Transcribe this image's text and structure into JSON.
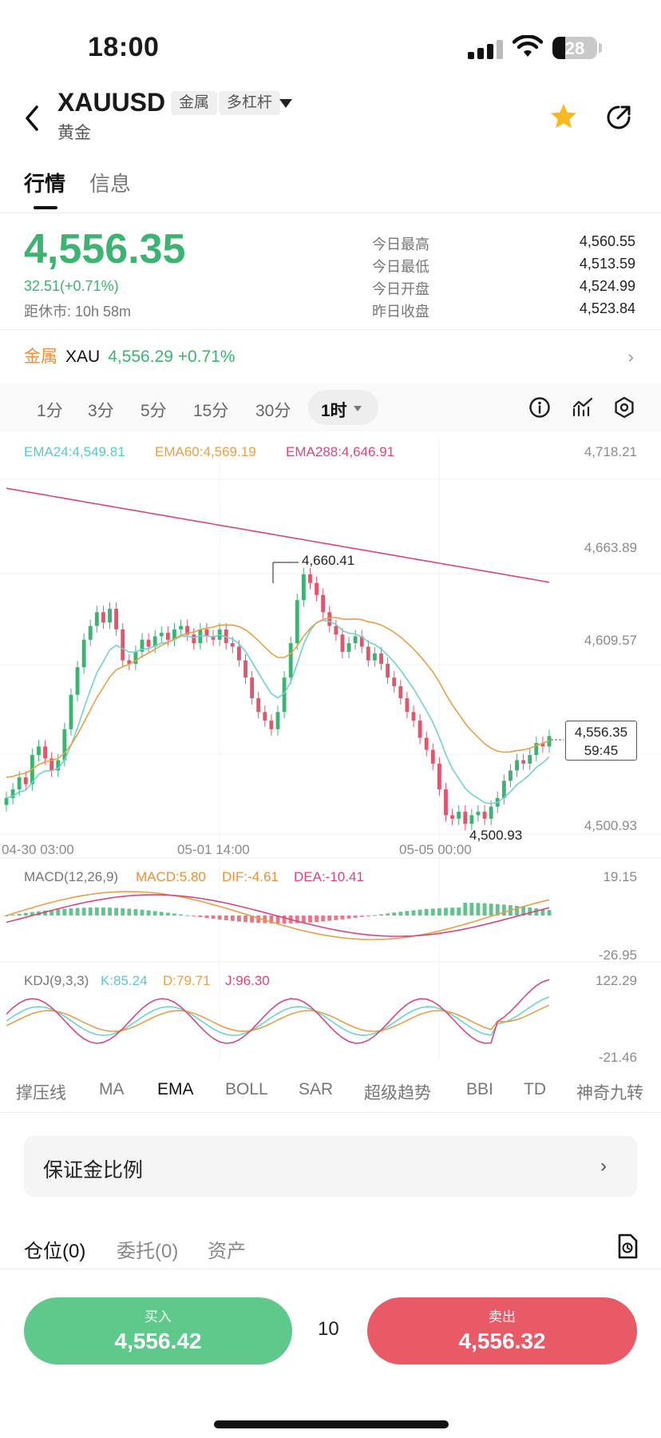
{
  "status_bar": {
    "time": "18:00",
    "battery": "28",
    "battery_level": 0.28
  },
  "header": {
    "symbol": "XAUUSD",
    "tags": [
      "金属",
      "多杠杆"
    ],
    "name": "黄金",
    "icons": [
      "back-icon",
      "caret-down-icon",
      "star-icon",
      "share-icon"
    ]
  },
  "tabs": {
    "active": "行情",
    "other": "信息"
  },
  "quote": {
    "price": "4,556.35",
    "change": "32.51(+0.71%)",
    "close_time": "距休市: 10h 58m",
    "stats": [
      {
        "label": "今日最高",
        "value": "4,560.55"
      },
      {
        "label": "今日最低",
        "value": "4,513.59"
      },
      {
        "label": "今日开盘",
        "value": "4,524.99"
      },
      {
        "label": "昨日收盘",
        "value": "4,523.84"
      }
    ]
  },
  "related": {
    "category": "金属",
    "symbol": "XAU",
    "values": "4,556.29 +0.71%"
  },
  "intervals": {
    "items": [
      "1分",
      "3分",
      "5分",
      "15分",
      "30分"
    ],
    "active": "1时"
  },
  "chart_data": {
    "type": "candlestick",
    "indicators": {
      "ema24": "EMA24:4,549.81",
      "ema60": "EMA60:4,569.19",
      "ema288": "EMA288:4,646.91"
    },
    "y_ticks": [
      "4,718.21",
      "4,663.89",
      "4,609.57",
      "4,500.93"
    ],
    "x_ticks": [
      "04-30 03:00",
      "05-01 14:00",
      "05-05 00:00"
    ],
    "high_marker": "4,660.41",
    "low_marker": "4,500.93",
    "last_price": "4,556.35",
    "countdown": "59:45",
    "ylim": [
      4500.93,
      4718.21
    ],
    "colors": {
      "up": "#3cb371",
      "down": "#e0566a",
      "ema24": "#6fd2cf",
      "ema60": "#e5a04a",
      "ema288": "#d6487e"
    },
    "macd": {
      "title": "MACD(12,26,9)",
      "macd": "MACD:5.80",
      "dif": "DIF:-4.61",
      "dea": "DEA:-10.41",
      "y_ticks": [
        "19.15",
        "-26.95"
      ]
    },
    "kdj": {
      "title": "KDJ(9,3,3)",
      "k": "K:85.24",
      "d": "D:79.71",
      "j": "J:96.30",
      "y_ticks": [
        "122.29",
        "-21.46"
      ]
    }
  },
  "indicator_tabs": {
    "items": [
      "撑压线",
      "MA",
      "EMA",
      "BOLL",
      "SAR",
      "超级趋势",
      "BBI",
      "TD",
      "神奇九转"
    ],
    "active": "EMA"
  },
  "margin": {
    "label": "保证金比例"
  },
  "positions": {
    "tabs": [
      "仓位(0)",
      "委托(0)",
      "资产"
    ]
  },
  "trade": {
    "buy_label": "买入",
    "buy_price": "4,556.42",
    "lots": "10",
    "sell_label": "卖出",
    "sell_price": "4,556.32"
  }
}
